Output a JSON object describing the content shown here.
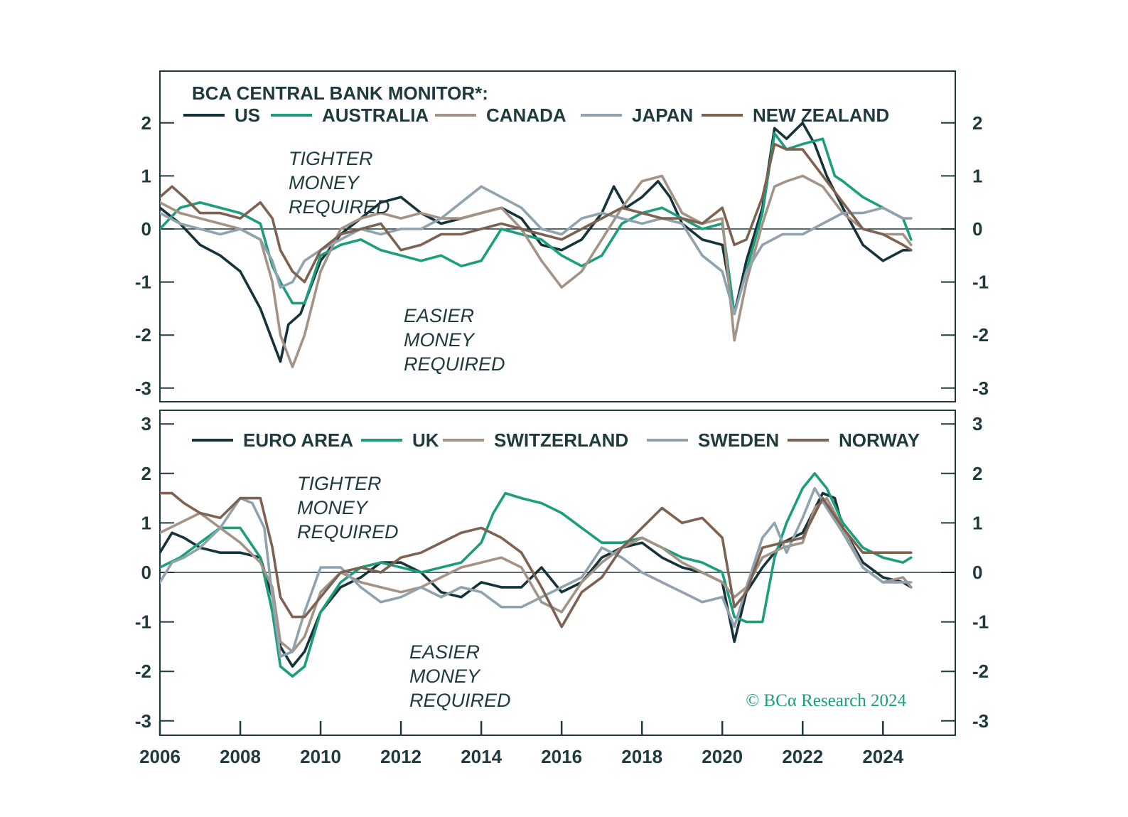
{
  "chart_data": [
    {
      "type": "line",
      "title": "BCA CENTRAL BANK MONITOR*:",
      "ylim": [
        -3,
        2.8
      ],
      "yticks": [
        "2",
        "1",
        "0",
        "-1",
        "-2",
        "-3"
      ],
      "ytick_values": [
        2,
        1,
        0,
        -1,
        -2,
        -3
      ],
      "annotations": {
        "tighter": [
          "TIGHTER",
          "MONEY",
          "REQUIRED"
        ],
        "easier": [
          "EASIER",
          "MONEY",
          "REQUIRED"
        ]
      },
      "series": [
        {
          "name": "US",
          "color": "#16333a",
          "x": [
            2006.0,
            2006.5,
            2007.0,
            2007.5,
            2008.0,
            2008.5,
            2008.8,
            2009.0,
            2009.2,
            2009.5,
            2010.0,
            2010.5,
            2011.0,
            2011.5,
            2012.0,
            2012.5,
            2013.0,
            2013.5,
            2014.0,
            2014.5,
            2015.0,
            2015.5,
            2016.0,
            2016.5,
            2017.0,
            2017.3,
            2017.6,
            2018.0,
            2018.4,
            2018.7,
            2019.0,
            2019.5,
            2020.0,
            2020.3,
            2020.6,
            2021.0,
            2021.3,
            2021.6,
            2022.0,
            2022.3,
            2022.6,
            2023.0,
            2023.5,
            2024.0,
            2024.5,
            2024.7
          ],
          "y": [
            0.4,
            0.1,
            -0.3,
            -0.5,
            -0.8,
            -1.5,
            -2.1,
            -2.5,
            -1.8,
            -1.6,
            -0.6,
            -0.1,
            0.2,
            0.5,
            0.6,
            0.3,
            0.1,
            0.2,
            0.3,
            0.4,
            0.2,
            -0.3,
            -0.4,
            -0.2,
            0.3,
            0.8,
            0.4,
            0.6,
            0.9,
            0.6,
            0.1,
            -0.2,
            -0.3,
            -1.6,
            -0.6,
            0.4,
            1.9,
            1.7,
            2.0,
            1.6,
            1.0,
            0.4,
            -0.3,
            -0.6,
            -0.4,
            -0.4
          ]
        },
        {
          "name": "AUSTRALIA",
          "color": "#1d9e7a",
          "x": [
            2006.0,
            2006.5,
            2007.0,
            2007.5,
            2008.0,
            2008.5,
            2008.8,
            2009.0,
            2009.3,
            2009.6,
            2010.0,
            2010.5,
            2011.0,
            2011.5,
            2012.0,
            2012.5,
            2013.0,
            2013.5,
            2014.0,
            2014.5,
            2015.0,
            2015.5,
            2016.0,
            2016.5,
            2017.0,
            2017.5,
            2018.0,
            2018.5,
            2019.0,
            2019.5,
            2020.0,
            2020.3,
            2020.6,
            2021.0,
            2021.3,
            2021.6,
            2022.0,
            2022.5,
            2022.8,
            2023.0,
            2023.5,
            2024.0,
            2024.5,
            2024.7
          ],
          "y": [
            0.0,
            0.4,
            0.5,
            0.4,
            0.3,
            0.1,
            -0.7,
            -1.0,
            -1.4,
            -1.4,
            -0.5,
            -0.3,
            -0.2,
            -0.4,
            -0.5,
            -0.6,
            -0.5,
            -0.7,
            -0.6,
            0.0,
            -0.1,
            -0.2,
            -0.5,
            -0.7,
            -0.5,
            0.1,
            0.3,
            0.4,
            0.2,
            0.0,
            0.1,
            -1.6,
            -0.8,
            0.3,
            1.8,
            1.5,
            1.6,
            1.7,
            1.0,
            0.9,
            0.6,
            0.4,
            0.2,
            -0.2
          ]
        },
        {
          "name": "CANADA",
          "color": "#a39386",
          "x": [
            2006.0,
            2006.5,
            2007.0,
            2007.5,
            2008.0,
            2008.5,
            2008.8,
            2009.0,
            2009.3,
            2009.6,
            2010.0,
            2010.5,
            2011.0,
            2011.5,
            2012.0,
            2012.5,
            2013.0,
            2013.5,
            2014.0,
            2014.5,
            2015.0,
            2015.5,
            2016.0,
            2016.5,
            2017.0,
            2017.5,
            2018.0,
            2018.5,
            2019.0,
            2019.5,
            2020.0,
            2020.3,
            2020.6,
            2021.0,
            2021.3,
            2021.6,
            2022.0,
            2022.5,
            2023.0,
            2023.5,
            2024.0,
            2024.5,
            2024.7
          ],
          "y": [
            0.5,
            0.3,
            0.2,
            0.1,
            0.0,
            -0.2,
            -1.0,
            -2.0,
            -2.6,
            -2.0,
            -0.8,
            0.0,
            0.2,
            0.3,
            0.2,
            0.3,
            0.2,
            0.2,
            0.3,
            0.4,
            0.0,
            -0.6,
            -1.1,
            -0.8,
            -0.2,
            0.4,
            0.9,
            1.0,
            0.3,
            0.1,
            0.2,
            -2.1,
            -1.0,
            0.1,
            0.8,
            0.9,
            1.0,
            0.8,
            0.3,
            0.0,
            -0.1,
            -0.1,
            -0.3
          ]
        },
        {
          "name": "JAPAN",
          "color": "#8fa2ae",
          "x": [
            2006.0,
            2006.5,
            2007.0,
            2007.5,
            2008.0,
            2008.5,
            2008.8,
            2009.0,
            2009.3,
            2009.6,
            2010.0,
            2010.5,
            2011.0,
            2011.5,
            2012.0,
            2012.5,
            2013.0,
            2013.5,
            2014.0,
            2014.5,
            2015.0,
            2015.5,
            2016.0,
            2016.5,
            2017.0,
            2017.5,
            2018.0,
            2018.5,
            2019.0,
            2019.5,
            2020.0,
            2020.3,
            2020.6,
            2021.0,
            2021.5,
            2022.0,
            2022.5,
            2023.0,
            2023.5,
            2024.0,
            2024.5,
            2024.7
          ],
          "y": [
            0.3,
            0.1,
            0.0,
            -0.1,
            0.0,
            -0.2,
            -0.6,
            -1.1,
            -1.0,
            -0.6,
            -0.4,
            -0.2,
            0.0,
            -0.1,
            0.0,
            0.0,
            0.2,
            0.5,
            0.8,
            0.6,
            0.4,
            0.0,
            -0.1,
            0.2,
            0.3,
            0.2,
            0.1,
            0.2,
            0.1,
            -0.5,
            -0.8,
            -1.6,
            -0.8,
            -0.3,
            -0.1,
            -0.1,
            0.1,
            0.3,
            0.3,
            0.4,
            0.2,
            0.2
          ]
        },
        {
          "name": "NEW ZEALAND",
          "color": "#7d6252",
          "x": [
            2006.0,
            2006.3,
            2006.6,
            2007.0,
            2007.5,
            2008.0,
            2008.5,
            2008.8,
            2009.0,
            2009.3,
            2009.6,
            2010.0,
            2010.5,
            2011.0,
            2011.5,
            2012.0,
            2012.5,
            2013.0,
            2013.5,
            2014.0,
            2014.5,
            2015.0,
            2015.5,
            2016.0,
            2016.5,
            2017.0,
            2017.5,
            2018.0,
            2018.5,
            2019.0,
            2019.5,
            2020.0,
            2020.3,
            2020.6,
            2021.0,
            2021.3,
            2021.6,
            2022.0,
            2022.5,
            2023.0,
            2023.5,
            2024.0,
            2024.5,
            2024.7
          ],
          "y": [
            0.6,
            0.8,
            0.6,
            0.3,
            0.3,
            0.2,
            0.5,
            0.2,
            -0.4,
            -0.8,
            -1.0,
            -0.4,
            -0.1,
            0.0,
            0.1,
            -0.4,
            -0.3,
            -0.1,
            -0.1,
            0.0,
            0.1,
            0.0,
            -0.1,
            -0.2,
            0.0,
            0.2,
            0.4,
            0.3,
            0.2,
            0.2,
            0.1,
            0.4,
            -0.3,
            -0.2,
            0.6,
            1.6,
            1.5,
            1.5,
            1.0,
            0.5,
            0.0,
            -0.1,
            -0.3,
            -0.4
          ]
        }
      ]
    },
    {
      "type": "line",
      "ylim": [
        -3,
        3.2
      ],
      "yticks": [
        "3",
        "2",
        "1",
        "0",
        "-1",
        "-2",
        "-3"
      ],
      "ytick_values": [
        3,
        2,
        1,
        0,
        -1,
        -2,
        -3
      ],
      "xlim": [
        2006,
        2025.8
      ],
      "xticks": [
        "2006",
        "2008",
        "2010",
        "2012",
        "2014",
        "2016",
        "2018",
        "2020",
        "2022",
        "2024"
      ],
      "xtick_values": [
        2006,
        2008,
        2010,
        2012,
        2014,
        2016,
        2018,
        2020,
        2022,
        2024
      ],
      "annotations": {
        "tighter": [
          "TIGHTER",
          "MONEY",
          "REQUIRED"
        ],
        "easier": [
          "EASIER",
          "MONEY",
          "REQUIRED"
        ]
      },
      "copyright": "© BCα Research 2024",
      "series": [
        {
          "name": "EURO AREA",
          "color": "#16333a",
          "x": [
            2006.0,
            2006.3,
            2006.6,
            2007.0,
            2007.5,
            2008.0,
            2008.5,
            2008.8,
            2009.0,
            2009.3,
            2009.6,
            2010.0,
            2010.5,
            2011.0,
            2011.5,
            2012.0,
            2012.5,
            2013.0,
            2013.5,
            2014.0,
            2014.5,
            2015.0,
            2015.5,
            2016.0,
            2016.5,
            2017.0,
            2017.5,
            2018.0,
            2018.5,
            2019.0,
            2019.5,
            2020.0,
            2020.3,
            2020.6,
            2021.0,
            2021.5,
            2022.0,
            2022.5,
            2022.8,
            2023.0,
            2023.5,
            2024.0,
            2024.5,
            2024.7
          ],
          "y": [
            0.4,
            0.8,
            0.7,
            0.5,
            0.4,
            0.4,
            0.3,
            -0.5,
            -1.5,
            -1.9,
            -1.6,
            -0.8,
            -0.3,
            -0.1,
            0.2,
            0.2,
            0.0,
            -0.4,
            -0.5,
            -0.2,
            -0.3,
            -0.3,
            0.1,
            -0.4,
            -0.2,
            0.3,
            0.5,
            0.6,
            0.3,
            0.1,
            0.0,
            -0.2,
            -1.4,
            -0.4,
            0.1,
            0.6,
            0.8,
            1.6,
            1.5,
            0.9,
            0.2,
            -0.1,
            -0.2,
            -0.3
          ]
        },
        {
          "name": "UK",
          "color": "#1d9e7a",
          "x": [
            2006.0,
            2006.5,
            2007.0,
            2007.5,
            2008.0,
            2008.5,
            2008.8,
            2009.0,
            2009.3,
            2009.6,
            2010.0,
            2010.5,
            2011.0,
            2011.5,
            2012.0,
            2012.5,
            2013.0,
            2013.5,
            2014.0,
            2014.3,
            2014.6,
            2015.0,
            2015.5,
            2016.0,
            2016.5,
            2017.0,
            2017.5,
            2018.0,
            2018.5,
            2019.0,
            2019.5,
            2020.0,
            2020.3,
            2020.6,
            2021.0,
            2021.3,
            2021.6,
            2022.0,
            2022.3,
            2022.6,
            2023.0,
            2023.5,
            2024.0,
            2024.5,
            2024.7
          ],
          "y": [
            0.1,
            0.3,
            0.6,
            0.9,
            0.9,
            0.3,
            -0.8,
            -1.9,
            -2.1,
            -1.9,
            -0.8,
            -0.2,
            0.1,
            0.2,
            0.1,
            0.0,
            0.1,
            0.2,
            0.6,
            1.2,
            1.6,
            1.5,
            1.4,
            1.2,
            0.9,
            0.6,
            0.6,
            0.7,
            0.5,
            0.3,
            0.2,
            0.0,
            -0.9,
            -1.0,
            -1.0,
            0.3,
            1.0,
            1.7,
            2.0,
            1.7,
            1.0,
            0.5,
            0.3,
            0.2,
            0.3
          ]
        },
        {
          "name": "SWITZERLAND",
          "color": "#a39386",
          "x": [
            2006.0,
            2006.5,
            2007.0,
            2007.5,
            2008.0,
            2008.5,
            2008.8,
            2009.0,
            2009.3,
            2009.6,
            2010.0,
            2010.5,
            2011.0,
            2011.5,
            2012.0,
            2012.5,
            2013.0,
            2013.5,
            2014.0,
            2014.5,
            2015.0,
            2015.5,
            2016.0,
            2016.5,
            2017.0,
            2017.5,
            2018.0,
            2018.5,
            2019.0,
            2019.5,
            2020.0,
            2020.3,
            2020.6,
            2021.0,
            2021.5,
            2022.0,
            2022.3,
            2022.6,
            2023.0,
            2023.5,
            2024.0,
            2024.5,
            2024.7
          ],
          "y": [
            0.8,
            1.0,
            1.2,
            0.9,
            0.6,
            0.2,
            -0.3,
            -1.4,
            -1.6,
            -1.3,
            -0.4,
            0.0,
            -0.2,
            -0.3,
            -0.4,
            -0.3,
            -0.1,
            0.1,
            0.2,
            0.3,
            0.1,
            -0.6,
            -0.8,
            -0.2,
            0.2,
            0.5,
            0.7,
            0.5,
            0.2,
            0.0,
            -0.2,
            -0.5,
            -0.3,
            0.3,
            0.5,
            0.6,
            1.3,
            1.5,
            0.9,
            0.1,
            -0.2,
            -0.1,
            -0.3
          ]
        },
        {
          "name": "SWEDEN",
          "color": "#8fa2ae",
          "x": [
            2006.0,
            2006.3,
            2006.6,
            2007.0,
            2007.5,
            2008.0,
            2008.3,
            2008.6,
            2008.8,
            2009.0,
            2009.3,
            2009.6,
            2010.0,
            2010.5,
            2011.0,
            2011.5,
            2012.0,
            2012.5,
            2013.0,
            2013.5,
            2014.0,
            2014.5,
            2015.0,
            2015.5,
            2016.0,
            2016.5,
            2017.0,
            2017.5,
            2018.0,
            2018.5,
            2019.0,
            2019.5,
            2020.0,
            2020.3,
            2020.6,
            2021.0,
            2021.3,
            2021.6,
            2022.0,
            2022.3,
            2022.6,
            2023.0,
            2023.5,
            2024.0,
            2024.5,
            2024.7
          ],
          "y": [
            -0.2,
            0.2,
            0.3,
            0.5,
            0.9,
            1.5,
            1.4,
            0.9,
            -0.5,
            -1.7,
            -1.6,
            -0.8,
            0.1,
            0.1,
            -0.3,
            -0.6,
            -0.5,
            -0.3,
            -0.5,
            -0.3,
            -0.4,
            -0.7,
            -0.7,
            -0.5,
            -0.3,
            -0.1,
            0.5,
            0.3,
            0.0,
            -0.2,
            -0.4,
            -0.6,
            -0.5,
            -1.1,
            -0.3,
            0.7,
            1.0,
            0.4,
            1.1,
            1.7,
            1.3,
            0.8,
            0.1,
            -0.2,
            -0.2,
            -0.2
          ]
        },
        {
          "name": "NORWAY",
          "color": "#7d6252",
          "x": [
            2006.0,
            2006.3,
            2006.6,
            2007.0,
            2007.5,
            2008.0,
            2008.5,
            2008.8,
            2009.0,
            2009.3,
            2009.6,
            2010.0,
            2010.5,
            2011.0,
            2011.5,
            2012.0,
            2012.5,
            2013.0,
            2013.5,
            2014.0,
            2014.5,
            2015.0,
            2015.5,
            2016.0,
            2016.5,
            2017.0,
            2017.5,
            2018.0,
            2018.5,
            2019.0,
            2019.5,
            2020.0,
            2020.3,
            2020.6,
            2021.0,
            2021.5,
            2022.0,
            2022.5,
            2023.0,
            2023.5,
            2024.0,
            2024.5,
            2024.7
          ],
          "y": [
            1.6,
            1.6,
            1.4,
            1.2,
            1.1,
            1.5,
            1.5,
            0.5,
            -0.5,
            -0.9,
            -0.9,
            -0.5,
            0.0,
            0.1,
            0.0,
            0.3,
            0.4,
            0.6,
            0.8,
            0.9,
            0.7,
            0.4,
            -0.3,
            -1.1,
            -0.4,
            -0.1,
            0.5,
            0.9,
            1.3,
            1.0,
            1.1,
            0.7,
            -0.7,
            -0.4,
            0.5,
            0.6,
            0.7,
            1.5,
            0.9,
            0.4,
            0.4,
            0.4,
            0.4
          ]
        }
      ]
    }
  ]
}
